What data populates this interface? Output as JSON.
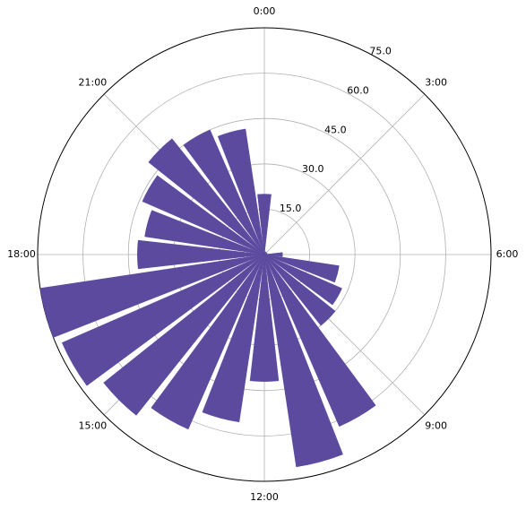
{
  "chart_data": {
    "type": "polar-bar",
    "categories": [
      "0:00",
      null,
      null,
      "3:00",
      null,
      null,
      "6:00",
      null,
      null,
      "9:00",
      null,
      null,
      "12:00",
      null,
      null,
      "15:00",
      null,
      null,
      "18:00",
      null,
      null,
      "21:00",
      null,
      null
    ],
    "values": [
      20,
      1,
      1,
      0.5,
      1,
      1,
      6,
      25,
      28,
      30,
      62,
      71,
      42,
      56,
      63,
      68,
      73,
      75,
      42,
      40,
      44,
      49,
      45,
      42
    ],
    "color": "#5b4a9e",
    "ylim": [
      0,
      75
    ],
    "yticks": [
      {
        "value": 15,
        "label": "15.0"
      },
      {
        "value": 30,
        "label": "30.0"
      },
      {
        "value": 45,
        "label": "45.0"
      },
      {
        "value": 60,
        "label": "60.0"
      },
      {
        "value": 75,
        "label": "75.0"
      }
    ],
    "grid": true
  }
}
